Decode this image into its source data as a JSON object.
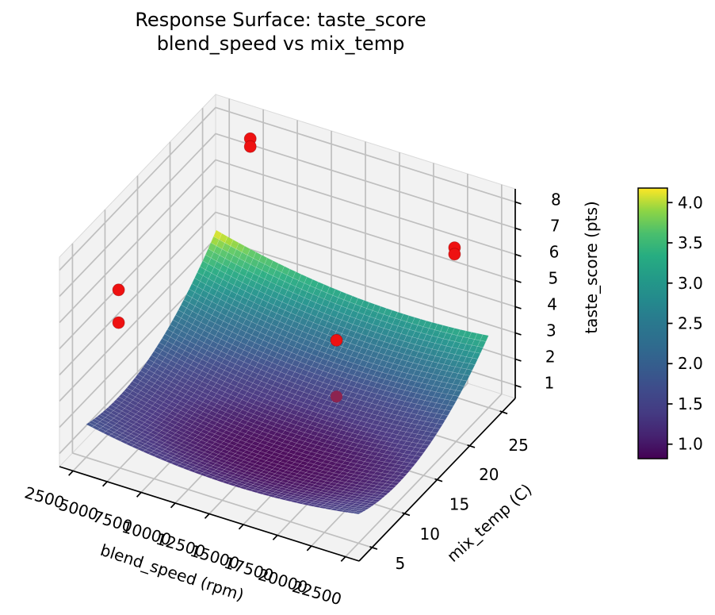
{
  "figure": {
    "background": "#ffffff",
    "title_line1": "Response Surface: taste_score",
    "title_line2": "blend_speed vs mix_temp"
  },
  "chart_data": {
    "type": "surface_3d",
    "title": "Response Surface: taste_score",
    "subtitle": "blend_speed vs mix_temp",
    "xlabel": "blend_speed (rpm)",
    "ylabel": "mix_temp (C)",
    "zlabel": "taste_score (pts)",
    "x_ticks": [
      2500,
      5000,
      7500,
      10000,
      12500,
      15000,
      17500,
      20000,
      22500
    ],
    "y_ticks": [
      5,
      10,
      15,
      20,
      25
    ],
    "z_ticks": [
      1,
      2,
      3,
      4,
      5,
      6,
      7,
      8
    ],
    "xlim": [
      1500,
      23500
    ],
    "ylim": [
      3,
      27
    ],
    "zlim": [
      0.5,
      8.5
    ],
    "x_data_range": [
      2500,
      22500
    ],
    "y_data_range": [
      5,
      25
    ],
    "grid": true,
    "colormap": "viridis",
    "surface": {
      "model": "quadratic_bowl",
      "base": 0.85,
      "a_u": 2.0,
      "b_v": 4.3,
      "c_uv": -0.6,
      "u0": 0.58,
      "v0": 0.28,
      "min_value": 0.85,
      "max_value": 4.0,
      "min_at": {
        "blend_speed": 14100,
        "mix_temp": 10.6
      },
      "max_at": {
        "blend_speed": 2500,
        "mix_temp": 25
      }
    },
    "scatter": {
      "color": "#ee1111",
      "occluded_color": "#8c2450",
      "points": [
        {
          "blend_speed": 5000,
          "mix_temp": 25,
          "taste_score": 7.9
        },
        {
          "blend_speed": 5000,
          "mix_temp": 25,
          "taste_score": 7.6
        },
        {
          "blend_speed": 2500,
          "mix_temp": 10,
          "taste_score": 5.6
        },
        {
          "blend_speed": 2500,
          "mix_temp": 10,
          "taste_score": 4.35
        },
        {
          "blend_speed": 20000,
          "mix_temp": 25,
          "taste_score": 6.2
        },
        {
          "blend_speed": 20000,
          "mix_temp": 25,
          "taste_score": 5.95
        },
        {
          "blend_speed": 18500,
          "mix_temp": 10,
          "taste_score": 6.3
        },
        {
          "blend_speed": 18500,
          "mix_temp": 10,
          "taste_score": 4.15,
          "occluded": true
        }
      ]
    },
    "colorbar": {
      "vmin": 0.82,
      "vmax": 4.18,
      "ticks": [
        "1.0",
        "1.5",
        "2.0",
        "2.5",
        "3.0",
        "3.5",
        "4.0"
      ]
    }
  }
}
